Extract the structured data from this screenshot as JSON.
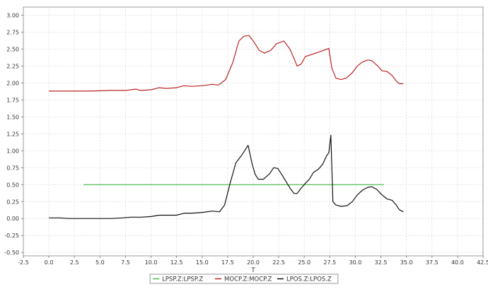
{
  "chart_data": {
    "type": "line",
    "title": "",
    "xlabel": "T",
    "ylabel": "",
    "xlim": [
      -2.5,
      42.5
    ],
    "ylim": [
      -0.55,
      3.12
    ],
    "grid": true,
    "legend": "bottom",
    "x_ticks": [
      "-2.5",
      "0.0",
      "2.5",
      "5.0",
      "7.5",
      "10.0",
      "12.5",
      "15.0",
      "17.5",
      "20.0",
      "22.5",
      "25.0",
      "27.5",
      "30.0",
      "32.5",
      "35.0",
      "37.5",
      "40.0",
      "42.5"
    ],
    "y_ticks": [
      "-0.50",
      "-0.25",
      "0.00",
      "0.25",
      "0.50",
      "0.75",
      "1.00",
      "1.25",
      "1.50",
      "1.75",
      "2.00",
      "2.25",
      "2.50",
      "2.75",
      "3.00"
    ],
    "series": [
      {
        "name": "LPSP.Z:LPSP.Z",
        "color": "#44bb44",
        "x": [
          3.4,
          32.8
        ],
        "y": [
          0.5,
          0.5
        ]
      },
      {
        "name": "MOCP.Z:MOCP.Z",
        "color": "#bb2222",
        "x": [
          0,
          2,
          4,
          6,
          7.5,
          8.5,
          9,
          10,
          10.8,
          11.5,
          12.5,
          13.2,
          14,
          15,
          16,
          16.6,
          17.3,
          18,
          18.6,
          19.1,
          19.6,
          20.1,
          20.6,
          21.1,
          21.7,
          22.3,
          23,
          23.6,
          24,
          24.3,
          24.7,
          25.1,
          26.5,
          27.4,
          27.7,
          28.1,
          28.6,
          29.1,
          29.7,
          30.2,
          30.7,
          31.2,
          31.6,
          32.2,
          32.6,
          33.1,
          33.6,
          34,
          34.3,
          34.7
        ],
        "y": [
          1.88,
          1.88,
          1.88,
          1.89,
          1.89,
          1.91,
          1.89,
          1.9,
          1.93,
          1.92,
          1.93,
          1.96,
          1.95,
          1.96,
          1.98,
          1.97,
          2.05,
          2.3,
          2.62,
          2.69,
          2.7,
          2.6,
          2.48,
          2.44,
          2.48,
          2.58,
          2.62,
          2.5,
          2.36,
          2.25,
          2.28,
          2.39,
          2.46,
          2.51,
          2.22,
          2.07,
          2.05,
          2.07,
          2.15,
          2.25,
          2.31,
          2.34,
          2.33,
          2.25,
          2.18,
          2.17,
          2.11,
          2.03,
          1.99,
          1.99
        ]
      },
      {
        "name": "LPOS.Z:LPOS.Z",
        "color": "#111111",
        "x": [
          0,
          1,
          2,
          4,
          6,
          7.2,
          8,
          9,
          10,
          10.8,
          11.5,
          12.5,
          13.3,
          14,
          15,
          16,
          16.7,
          17.2,
          17.7,
          18.3,
          18.9,
          19.5,
          19.9,
          20.2,
          20.5,
          21,
          21.6,
          22,
          22.4,
          22.8,
          23.2,
          23.6,
          24,
          24.3,
          24.7,
          25.1,
          25.5,
          25.9,
          26.4,
          26.8,
          27.2,
          27.4,
          27.6,
          27.8,
          28.1,
          28.6,
          29.2,
          29.7,
          30.2,
          30.7,
          31.2,
          31.6,
          32.1,
          32.6,
          33.1,
          33.6,
          34,
          34.3,
          34.7
        ],
        "y": [
          0.01,
          0.01,
          0.0,
          0.0,
          0.0,
          0.01,
          0.02,
          0.02,
          0.03,
          0.05,
          0.05,
          0.05,
          0.08,
          0.08,
          0.09,
          0.11,
          0.1,
          0.2,
          0.5,
          0.82,
          0.94,
          1.08,
          0.8,
          0.65,
          0.58,
          0.58,
          0.66,
          0.75,
          0.74,
          0.65,
          0.55,
          0.45,
          0.37,
          0.37,
          0.45,
          0.52,
          0.58,
          0.68,
          0.73,
          0.8,
          0.93,
          0.97,
          1.23,
          0.25,
          0.2,
          0.18,
          0.19,
          0.25,
          0.35,
          0.42,
          0.46,
          0.47,
          0.43,
          0.35,
          0.29,
          0.27,
          0.2,
          0.13,
          0.1
        ]
      }
    ]
  }
}
